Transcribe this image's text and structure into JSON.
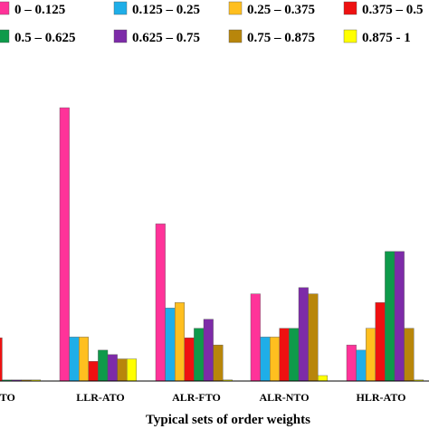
{
  "chart_data": {
    "type": "bar",
    "title": "",
    "xlabel": "Typical sets of order weights",
    "ylabel": "",
    "ylim": [
      0,
      1
    ],
    "grid": false,
    "legend_position": "top",
    "categories": [
      "LLR-NTO",
      "LLR-ATO",
      "ALR-FTO",
      "ALR-NTO",
      "HLR-ATO"
    ],
    "visible_category_labels": [
      "-NTO",
      "LLR-ATO",
      "ALR-FTO",
      "ALR-NTO",
      "HLR-ATO"
    ],
    "series": [
      {
        "name": "0 – 0.125",
        "color": "#FF3399",
        "values": [
          0.0,
          1.0,
          0.575,
          0.319,
          0.132
        ]
      },
      {
        "name": "0.125 – 0.25",
        "color": "#1FAEE8",
        "values": [
          0.0,
          0.161,
          0.267,
          0.161,
          0.113
        ]
      },
      {
        "name": "0.25 – 0.375",
        "color": "#FFBF1F",
        "values": [
          0.0,
          0.161,
          0.287,
          0.161,
          0.193
        ]
      },
      {
        "name": "0.375 – 0.5",
        "color": "#EE1111",
        "values": [
          0.158,
          0.072,
          0.158,
          0.193,
          0.287
        ]
      },
      {
        "name": "0.5 – 0.625",
        "color": "#0E9A4A",
        "values": [
          0.0,
          0.113,
          0.193,
          0.193,
          0.474
        ]
      },
      {
        "name": "0.625 – 0.75",
        "color": "#7D2BA8",
        "values": [
          0.0,
          0.097,
          0.226,
          0.342,
          0.474
        ]
      },
      {
        "name": "0.75 – 0.875",
        "color": "#B8860B",
        "values": [
          0.0,
          0.081,
          0.132,
          0.319,
          0.193
        ]
      },
      {
        "name": "0.875 - 1",
        "color": "#FFFF00",
        "values": [
          0.0,
          0.081,
          0.0,
          0.02,
          0.0
        ]
      }
    ]
  }
}
